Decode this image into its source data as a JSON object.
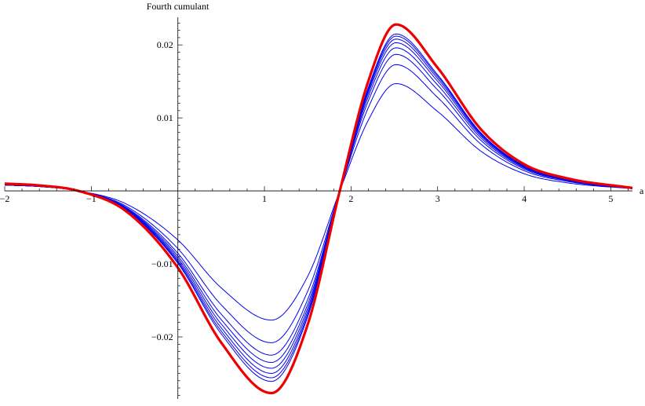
{
  "chart_data": {
    "type": "line",
    "title": "",
    "xlabel": "a",
    "ylabel": "Fourth cumulant",
    "xlim": [
      -2,
      5.25
    ],
    "ylim": [
      -0.0285,
      0.024
    ],
    "x_ticks": [
      {
        "value": -2,
        "label": "−2"
      },
      {
        "value": -1,
        "label": "−1"
      },
      {
        "value": 1,
        "label": "1"
      },
      {
        "value": 2,
        "label": "2"
      },
      {
        "value": 3,
        "label": "3"
      },
      {
        "value": 4,
        "label": "4"
      },
      {
        "value": 5,
        "label": "5"
      }
    ],
    "y_ticks": [
      {
        "value": 0.02,
        "label": "0.02"
      },
      {
        "value": 0.01,
        "label": "0.01"
      },
      {
        "value": -0.01,
        "label": "−0.01"
      },
      {
        "value": -0.02,
        "label": "−0.02"
      }
    ],
    "grid": false,
    "legend": "none",
    "series": [
      {
        "color": "#0000ee",
        "width": 1,
        "min": -0.0177,
        "max": 0.0147,
        "x_min": 1.08,
        "x_max": 2.52,
        "x_zero": 1.87,
        "x_left_zero": -1.15,
        "start": 0.0008,
        "end": 0.0003
      },
      {
        "color": "#0000ee",
        "width": 1,
        "min": -0.0208,
        "max": 0.0173,
        "x_min": 1.08,
        "x_max": 2.52,
        "x_zero": 1.87,
        "x_left_zero": -1.15,
        "start": 0.0008,
        "end": 0.0003
      },
      {
        "color": "#0000ee",
        "width": 1,
        "min": -0.0225,
        "max": 0.0187,
        "x_min": 1.08,
        "x_max": 2.52,
        "x_zero": 1.87,
        "x_left_zero": -1.15,
        "start": 0.0008,
        "end": 0.0003
      },
      {
        "color": "#0000ee",
        "width": 1,
        "min": -0.0235,
        "max": 0.0196,
        "x_min": 1.08,
        "x_max": 2.52,
        "x_zero": 1.87,
        "x_left_zero": -1.15,
        "start": 0.0008,
        "end": 0.0003
      },
      {
        "color": "#0000ee",
        "width": 1,
        "min": -0.0243,
        "max": 0.0203,
        "x_min": 1.08,
        "x_max": 2.52,
        "x_zero": 1.87,
        "x_left_zero": -1.15,
        "start": 0.0008,
        "end": 0.0003
      },
      {
        "color": "#0000ee",
        "width": 1,
        "min": -0.025,
        "max": 0.0208,
        "x_min": 1.08,
        "x_max": 2.52,
        "x_zero": 1.87,
        "x_left_zero": -1.15,
        "start": 0.0008,
        "end": 0.0003
      },
      {
        "color": "#0000ee",
        "width": 1,
        "min": -0.0256,
        "max": 0.0212,
        "x_min": 1.08,
        "x_max": 2.52,
        "x_zero": 1.87,
        "x_left_zero": -1.15,
        "start": 0.0008,
        "end": 0.0003
      },
      {
        "color": "#0000ee",
        "width": 1,
        "min": -0.0261,
        "max": 0.0215,
        "x_min": 1.08,
        "x_max": 2.52,
        "x_zero": 1.87,
        "x_left_zero": -1.15,
        "start": 0.0008,
        "end": 0.0003
      },
      {
        "color": "#ee0000",
        "width": 3.2,
        "min": -0.0277,
        "max": 0.0228,
        "x_min": 1.08,
        "x_max": 2.52,
        "x_zero": 1.87,
        "x_left_zero": -1.15,
        "start": 0.001,
        "end": 0.0004
      }
    ]
  }
}
